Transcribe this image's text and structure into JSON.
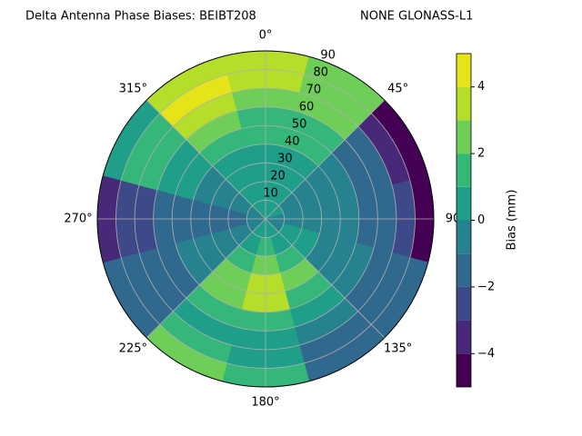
{
  "chart_data": {
    "type": "polar-contour",
    "title": "Delta Antenna Phase Biases: BEIBT208",
    "subtitle": "NONE GLONASS-L1",
    "azimuths": [
      0,
      30,
      60,
      90,
      120,
      150,
      180,
      210,
      240,
      270,
      300,
      330
    ],
    "zenith_edges": [
      0,
      10,
      20,
      30,
      40,
      50,
      60,
      70,
      80,
      90
    ],
    "z": [
      [
        0,
        0,
        0,
        0.5,
        1,
        1.5,
        2,
        3,
        3.5
      ],
      [
        0,
        0,
        0,
        0.5,
        1,
        1.5,
        2,
        2.5,
        2.5
      ],
      [
        0,
        -0.5,
        -0.5,
        -1,
        -1,
        -1.5,
        -2,
        -3.5,
        -4.5
      ],
      [
        -0.5,
        -0.5,
        -1,
        -1,
        -1,
        -1.5,
        -2,
        -3,
        -4.5
      ],
      [
        -0.5,
        0,
        0,
        -0.5,
        -1,
        -1,
        -1.5,
        -1.5,
        -2
      ],
      [
        0,
        0.5,
        1,
        2,
        1.5,
        0,
        -1,
        -1.5,
        -2
      ],
      [
        0,
        1,
        2,
        3.5,
        3,
        1.5,
        0,
        0.5,
        1
      ],
      [
        0,
        0.5,
        1.5,
        2.5,
        2,
        1,
        0.5,
        1,
        2
      ],
      [
        -1,
        -1,
        -1,
        -0.5,
        -1,
        -1.5,
        -1.5,
        -1.5,
        -1.5
      ],
      [
        -1,
        -1.5,
        -1.5,
        -1.5,
        -2,
        -2,
        -2.5,
        -3,
        -3.5
      ],
      [
        -0.5,
        -1,
        -1,
        -0.5,
        0,
        0.5,
        1,
        1,
        0.5
      ],
      [
        0,
        0,
        0,
        0.5,
        1.5,
        2.5,
        3.5,
        4.5,
        3
      ]
    ],
    "levels": [
      -5,
      -4,
      -3,
      -2,
      -1,
      0,
      1,
      2,
      3,
      4,
      5
    ],
    "colors": [
      "#440154",
      "#482878",
      "#3e4989",
      "#31688e",
      "#26828e",
      "#1f9e89",
      "#35b779",
      "#6ece58",
      "#b5de2b",
      "#e5e419"
    ],
    "rlim": [
      0,
      90
    ],
    "rticks": [
      10,
      20,
      30,
      40,
      50,
      60,
      70,
      80,
      90
    ],
    "thetaticks": [
      {
        "value": 0,
        "label": "0°"
      },
      {
        "value": 45,
        "label": "45°"
      },
      {
        "value": 90,
        "label": "90"
      },
      {
        "value": 135,
        "label": "135°"
      },
      {
        "value": 180,
        "label": "180°"
      },
      {
        "value": 225,
        "label": "225°"
      },
      {
        "value": 270,
        "label": "270°"
      },
      {
        "value": 315,
        "label": "315°"
      }
    ],
    "colorbar_label": "Bias (mm)",
    "colorbar_lim": [
      -5,
      5
    ],
    "colorbar_ticks": [
      {
        "value": -4,
        "label": "−4"
      },
      {
        "value": -2,
        "label": "−2"
      },
      0,
      2,
      4
    ],
    "grid": true
  }
}
